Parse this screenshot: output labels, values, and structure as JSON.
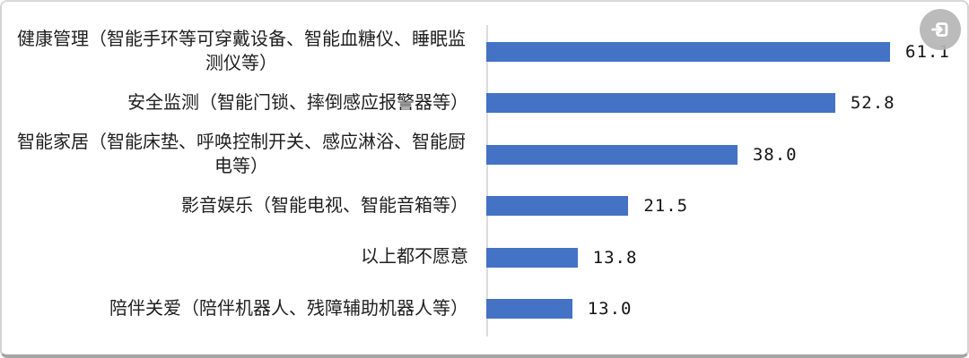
{
  "chart_data": {
    "type": "bar",
    "orientation": "horizontal",
    "title": "",
    "categories": [
      "健康管理（智能手环等可穿戴设备、智能血糖仪、睡眠监测仪等）",
      "安全监测（智能门锁、摔倒感应报警器等）",
      "智能家居（智能床垫、呼唤控制开关、感应淋浴、智能厨电等）",
      "影音娱乐（智能电视、智能音箱等）",
      "以上都不愿意",
      "陪伴关爱（陪伴机器人、残障辅助机器人等）"
    ],
    "values": [
      61.1,
      52.8,
      38.0,
      21.5,
      13.8,
      13.0
    ],
    "value_labels": [
      "61.1",
      "52.8",
      "38.0",
      "21.5",
      "13.8",
      "13.0"
    ],
    "bar_color": "#4472c4",
    "axis_line_color": "#dcdcdc",
    "label_color": "#1f1f1f",
    "grid": false,
    "legend": "none"
  },
  "overlay": {
    "corner_button_icon": "enter-arrow-icon",
    "corner_button_color": "#b6b6b6"
  }
}
